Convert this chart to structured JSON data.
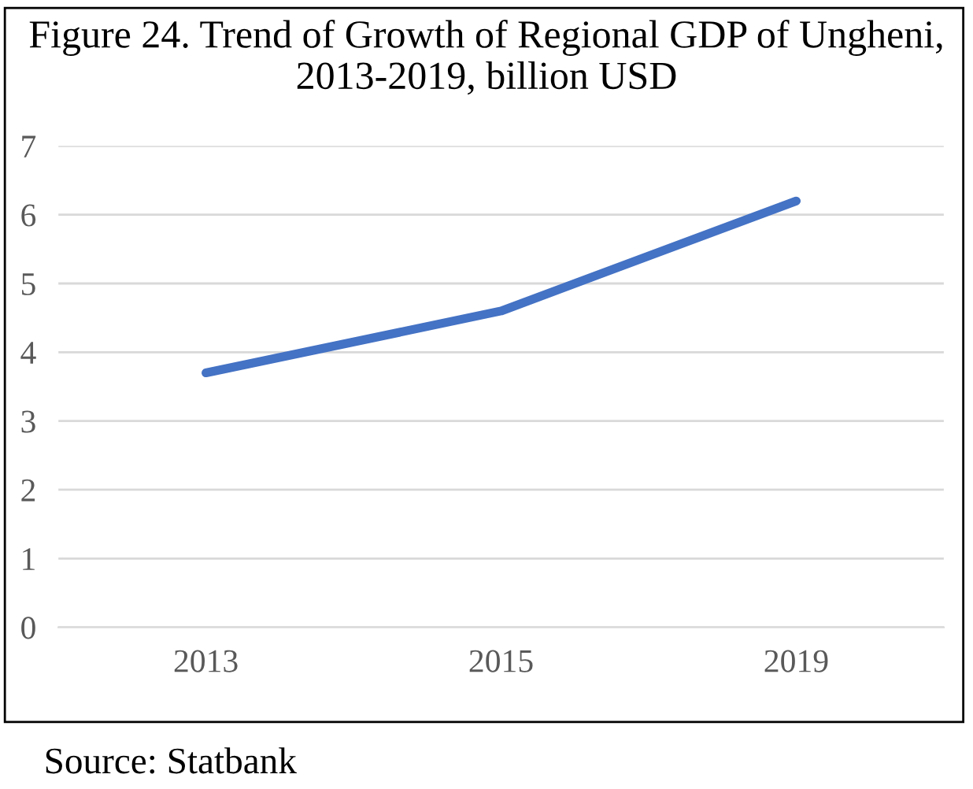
{
  "chart_data": {
    "type": "line",
    "title": "Figure 24. Trend of Growth of Regional GDP of Ungheni, 2013-2019, billion USD",
    "categories": [
      "2013",
      "2015",
      "2019"
    ],
    "series": [
      {
        "color": "#4472c4",
        "values": [
          3.7,
          4.6,
          6.2
        ]
      }
    ],
    "ylim": [
      0,
      7
    ],
    "yticks": [
      0,
      1,
      2,
      3,
      4,
      5,
      6,
      7
    ],
    "grid": "y",
    "legend": false,
    "marker": "none",
    "line_style": "solid",
    "annotations": [
      "Source: Statbank"
    ]
  }
}
